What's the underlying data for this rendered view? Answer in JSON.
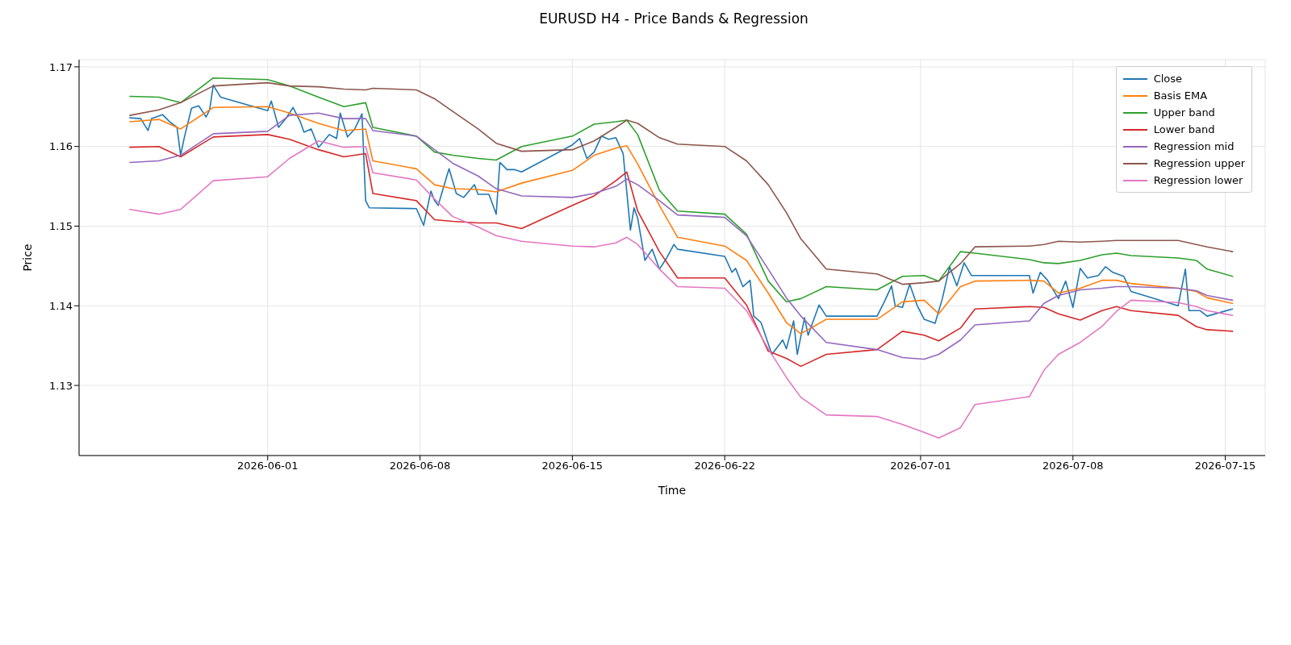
{
  "chart_data": {
    "type": "line",
    "title": "EURUSD H4 - Price Bands & Regression",
    "xlabel": "Time",
    "ylabel": "Price",
    "xlim": [
      "2026-05-23T08:00",
      "2026-07-16T20:00"
    ],
    "xticks": [
      "2026-06-01",
      "2026-06-08",
      "2026-06-15",
      "2026-06-22",
      "2026-07-01",
      "2026-07-08",
      "2026-07-15"
    ],
    "ylim": [
      1.1212,
      1.1709
    ],
    "yticks": [
      1.13,
      1.14,
      1.15,
      1.16,
      1.17
    ],
    "grid": true,
    "legend": "top right",
    "x": [
      "2026-05-25T16:00",
      "2026-05-27T00:00",
      "2026-05-28T00:00",
      "2026-05-29T12:00",
      "2026-06-01T00:00",
      "2026-06-02T00:00",
      "2026-06-03T08:00",
      "2026-06-04T12:00",
      "2026-06-05T12:00",
      "2026-06-05T20:00",
      "2026-06-07T20:00",
      "2026-06-08T16:00",
      "2026-06-09T12:00",
      "2026-06-10T16:00",
      "2026-06-11T12:00",
      "2026-06-12T16:00",
      "2026-06-15T00:00",
      "2026-06-16T00:00",
      "2026-06-17T00:00",
      "2026-06-17T12:00",
      "2026-06-18T00:00",
      "2026-06-19T00:00",
      "2026-06-19T20:00",
      "2026-06-22T00:00",
      "2026-06-23T00:00",
      "2026-06-24T00:00",
      "2026-06-24T20:00",
      "2026-06-25T12:00",
      "2026-06-26T16:00",
      "2026-06-29T00:00",
      "2026-06-30T04:00",
      "2026-07-01T04:00",
      "2026-07-01T20:00",
      "2026-07-02T20:00",
      "2026-07-03T12:00",
      "2026-07-06T00:00",
      "2026-07-06T16:00",
      "2026-07-07T08:00",
      "2026-07-08T08:00",
      "2026-07-09T08:00",
      "2026-07-10T00:00",
      "2026-07-10T16:00",
      "2026-07-12T20:00",
      "2026-07-13T16:00",
      "2026-07-14T04:00",
      "2026-07-15T08:00"
    ],
    "series": [
      {
        "name": "Close",
        "color": "#1f77b4",
        "x": [
          "2026-05-25T16:00",
          "2026-05-26T04:00",
          "2026-05-26T12:00",
          "2026-05-26T16:00",
          "2026-05-27T04:00",
          "2026-05-27T12:00",
          "2026-05-27T20:00",
          "2026-05-28T00:00",
          "2026-05-28T04:00",
          "2026-05-28T12:00",
          "2026-05-28T20:00",
          "2026-05-29T04:00",
          "2026-05-29T08:00",
          "2026-05-29T12:00",
          "2026-05-29T20:00",
          "2026-06-01T00:00",
          "2026-06-01T04:00",
          "2026-06-01T12:00",
          "2026-06-01T20:00",
          "2026-06-02T04:00",
          "2026-06-02T12:00",
          "2026-06-02T16:00",
          "2026-06-03T00:00",
          "2026-06-03T08:00",
          "2026-06-03T12:00",
          "2026-06-03T20:00",
          "2026-06-04T04:00",
          "2026-06-04T08:00",
          "2026-06-04T16:00",
          "2026-06-05T00:00",
          "2026-06-05T08:00",
          "2026-06-05T12:00",
          "2026-06-05T16:00",
          "2026-06-07T20:00",
          "2026-06-08T04:00",
          "2026-06-08T12:00",
          "2026-06-08T16:00",
          "2026-06-08T20:00",
          "2026-06-09T08:00",
          "2026-06-09T16:00",
          "2026-06-10T00:00",
          "2026-06-10T12:00",
          "2026-06-10T16:00",
          "2026-06-11T04:00",
          "2026-06-11T12:00",
          "2026-06-11T16:00",
          "2026-06-12T00:00",
          "2026-06-12T08:00",
          "2026-06-12T16:00",
          "2026-06-15T00:00",
          "2026-06-15T08:00",
          "2026-06-15T16:00",
          "2026-06-16T00:00",
          "2026-06-16T08:00",
          "2026-06-16T16:00",
          "2026-06-17T00:00",
          "2026-06-17T08:00",
          "2026-06-17T16:00",
          "2026-06-17T20:00",
          "2026-06-18T00:00",
          "2026-06-18T08:00",
          "2026-06-18T16:00",
          "2026-06-19T00:00",
          "2026-06-19T08:00",
          "2026-06-19T16:00",
          "2026-06-19T20:00",
          "2026-06-22T00:00",
          "2026-06-22T08:00",
          "2026-06-22T12:00",
          "2026-06-22T20:00",
          "2026-06-23T04:00",
          "2026-06-23T08:00",
          "2026-06-23T16:00",
          "2026-06-24T04:00",
          "2026-06-24T16:00",
          "2026-06-24T20:00",
          "2026-06-25T04:00",
          "2026-06-25T08:00",
          "2026-06-25T16:00",
          "2026-06-25T20:00",
          "2026-06-26T08:00",
          "2026-06-26T16:00",
          "2026-06-29T00:00",
          "2026-06-29T08:00",
          "2026-06-29T16:00",
          "2026-06-29T20:00",
          "2026-06-30T04:00",
          "2026-06-30T12:00",
          "2026-06-30T20:00",
          "2026-07-01T04:00",
          "2026-07-01T16:00",
          "2026-07-02T00:00",
          "2026-07-02T08:00",
          "2026-07-02T16:00",
          "2026-07-03T00:00",
          "2026-07-03T08:00",
          "2026-07-03T16:00",
          "2026-07-06T00:00",
          "2026-07-06T04:00",
          "2026-07-06T12:00",
          "2026-07-06T20:00",
          "2026-07-07T08:00",
          "2026-07-07T16:00",
          "2026-07-08T00:00",
          "2026-07-08T08:00",
          "2026-07-08T16:00",
          "2026-07-09T04:00",
          "2026-07-09T12:00",
          "2026-07-09T20:00",
          "2026-07-10T08:00",
          "2026-07-10T16:00",
          "2026-07-12T20:00",
          "2026-07-13T04:00",
          "2026-07-13T08:00",
          "2026-07-13T20:00",
          "2026-07-14T04:00",
          "2026-07-15T08:00"
        ],
        "values": [
          1.1636,
          1.1635,
          1.162,
          1.1635,
          1.164,
          1.1631,
          1.1624,
          1.1589,
          1.1611,
          1.1648,
          1.1651,
          1.1637,
          1.1646,
          1.1677,
          1.1662,
          1.1645,
          1.1657,
          1.1624,
          1.1635,
          1.1649,
          1.1631,
          1.1618,
          1.1622,
          1.1599,
          1.1604,
          1.1615,
          1.161,
          1.1642,
          1.1612,
          1.1622,
          1.1641,
          1.1532,
          1.1523,
          1.1522,
          1.1501,
          1.1544,
          1.1532,
          1.1526,
          1.1572,
          1.1541,
          1.1536,
          1.1552,
          1.154,
          1.154,
          1.1515,
          1.158,
          1.1571,
          1.1571,
          1.1568,
          1.1602,
          1.161,
          1.1585,
          1.1593,
          1.1613,
          1.1609,
          1.1611,
          1.1591,
          1.1495,
          1.1523,
          1.151,
          1.1457,
          1.1471,
          1.1446,
          1.146,
          1.1477,
          1.1471,
          1.1462,
          1.1442,
          1.1447,
          1.1424,
          1.1432,
          1.1387,
          1.1379,
          1.1339,
          1.1357,
          1.1346,
          1.1381,
          1.1339,
          1.1385,
          1.1363,
          1.1401,
          1.1387,
          1.1387,
          1.1405,
          1.1425,
          1.14,
          1.1398,
          1.1427,
          1.1401,
          1.1383,
          1.1378,
          1.1409,
          1.1449,
          1.1425,
          1.1454,
          1.1438,
          1.1438,
          1.1438,
          1.1416,
          1.1442,
          1.1432,
          1.1409,
          1.1431,
          1.1398,
          1.1447,
          1.1435,
          1.1438,
          1.1449,
          1.1442,
          1.1437,
          1.1418,
          1.14,
          1.1446,
          1.1394,
          1.1394,
          1.1387,
          1.1396
        ]
      },
      {
        "name": "Basis EMA",
        "color": "#ff7f0e",
        "values": [
          1.1631,
          1.1634,
          1.1622,
          1.1649,
          1.165,
          1.1642,
          1.1629,
          1.162,
          1.1622,
          1.1582,
          1.1572,
          1.1552,
          1.1547,
          1.1546,
          1.1543,
          1.1554,
          1.157,
          1.1589,
          1.1598,
          1.1601,
          1.1578,
          1.1526,
          1.1486,
          1.1475,
          1.1457,
          1.1416,
          1.1379,
          1.1365,
          1.1383,
          1.1383,
          1.1405,
          1.1407,
          1.139,
          1.1424,
          1.1431,
          1.1432,
          1.1431,
          1.1416,
          1.1422,
          1.1432,
          1.1432,
          1.1428,
          1.1422,
          1.1418,
          1.141,
          1.1403
        ]
      },
      {
        "name": "Upper band",
        "color": "#2ca02c",
        "values": [
          1.1663,
          1.1662,
          1.1655,
          1.1686,
          1.1684,
          1.1676,
          1.1662,
          1.165,
          1.1655,
          1.1624,
          1.1613,
          1.1593,
          1.1589,
          1.1585,
          1.1583,
          1.16,
          1.1613,
          1.1628,
          1.1631,
          1.1633,
          1.1615,
          1.1545,
          1.1519,
          1.1515,
          1.149,
          1.1431,
          1.1405,
          1.1409,
          1.1424,
          1.142,
          1.1437,
          1.1438,
          1.1431,
          1.1468,
          1.1466,
          1.1458,
          1.1454,
          1.1453,
          1.1457,
          1.1464,
          1.1466,
          1.1463,
          1.146,
          1.1457,
          1.1446,
          1.1437
        ]
      },
      {
        "name": "Lower band",
        "color": "#d62728",
        "values": [
          1.1599,
          1.16,
          1.1587,
          1.1612,
          1.1615,
          1.1609,
          1.1596,
          1.1587,
          1.1591,
          1.1541,
          1.1532,
          1.1508,
          1.1506,
          1.1504,
          1.1504,
          1.1497,
          1.1526,
          1.1538,
          1.1557,
          1.1568,
          1.1519,
          1.1468,
          1.1435,
          1.1435,
          1.1401,
          1.1343,
          1.1334,
          1.1324,
          1.1339,
          1.1345,
          1.1368,
          1.1363,
          1.1356,
          1.1372,
          1.1396,
          1.1399,
          1.1398,
          1.139,
          1.1382,
          1.1394,
          1.1399,
          1.1394,
          1.1388,
          1.1374,
          1.137,
          1.1368
        ]
      },
      {
        "name": "Regression mid",
        "color": "#9467bd",
        "values": [
          1.158,
          1.1582,
          1.1589,
          1.1616,
          1.1619,
          1.1639,
          1.1642,
          1.1635,
          1.1635,
          1.162,
          1.1613,
          1.1596,
          1.1579,
          1.1563,
          1.1547,
          1.1538,
          1.1536,
          1.1541,
          1.155,
          1.1559,
          1.1552,
          1.1532,
          1.1514,
          1.1511,
          1.1488,
          1.1446,
          1.141,
          1.1387,
          1.1354,
          1.1345,
          1.1335,
          1.1333,
          1.1339,
          1.1357,
          1.1376,
          1.1381,
          1.1403,
          1.1413,
          1.142,
          1.1422,
          1.1424,
          1.1424,
          1.1422,
          1.1419,
          1.1413,
          1.1407
        ]
      },
      {
        "name": "Regression upper",
        "color": "#8c564b",
        "values": [
          1.1639,
          1.1646,
          1.1655,
          1.1676,
          1.168,
          1.1676,
          1.1675,
          1.1672,
          1.1671,
          1.1673,
          1.1671,
          1.166,
          1.1644,
          1.1622,
          1.1604,
          1.1594,
          1.1596,
          1.1607,
          1.1624,
          1.1633,
          1.1629,
          1.1611,
          1.1603,
          1.16,
          1.1582,
          1.1552,
          1.1517,
          1.1484,
          1.1446,
          1.144,
          1.1427,
          1.1429,
          1.1431,
          1.1453,
          1.1474,
          1.1475,
          1.1477,
          1.1481,
          1.148,
          1.1481,
          1.1482,
          1.1482,
          1.1482,
          1.1477,
          1.1474,
          1.1468
        ]
      },
      {
        "name": "Regression lower",
        "color": "#e377c2",
        "values": [
          1.1521,
          1.1515,
          1.1521,
          1.1557,
          1.1562,
          1.1585,
          1.1607,
          1.1599,
          1.16,
          1.1567,
          1.1558,
          1.1534,
          1.1512,
          1.1499,
          1.1488,
          1.1481,
          1.1475,
          1.1474,
          1.1479,
          1.1486,
          1.1477,
          1.1446,
          1.1424,
          1.1422,
          1.1394,
          1.1346,
          1.131,
          1.1285,
          1.1263,
          1.1261,
          1.1251,
          1.1241,
          1.1234,
          1.1247,
          1.1276,
          1.1286,
          1.1319,
          1.1339,
          1.1354,
          1.1374,
          1.1393,
          1.1407,
          1.1404,
          1.1399,
          1.1394,
          1.1388
        ]
      }
    ]
  }
}
